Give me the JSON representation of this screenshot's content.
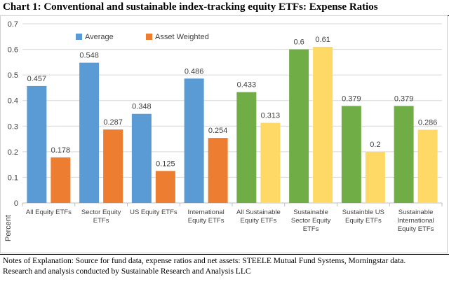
{
  "title": "Chart 1:  Conventional and sustainable index-tracking equity ETFs:  Expense Ratios",
  "notes": {
    "line1": "Notes of Explanation:  Source for fund data, expense ratios and net assets: STEELE Mutual Fund Systems, Morningstar data.",
    "line2": "Research and analysis conducted by Sustainable Research and Analysis LLC"
  },
  "colors": {
    "average": "#5b9bd5",
    "asset_weighted": "#ed7d31",
    "sustainable_average": "#70ad47",
    "sustainable_asset_weighted": "#ffd966",
    "grid": "#d9d9d9",
    "axis": "#bfbfbf"
  },
  "chart_data": {
    "type": "bar",
    "title": "",
    "xlabel": "",
    "ylabel": "Percent",
    "ylim": [
      0,
      0.7
    ],
    "yticks": [
      "0",
      "0.1",
      "0.2",
      "0.3",
      "0.4",
      "0.5",
      "0.6",
      "0.7"
    ],
    "grid": true,
    "legend_position": "top-left",
    "categories": [
      [
        "All Equity ETFs"
      ],
      [
        "Sector Equity",
        "ETFs"
      ],
      [
        "US Equity ETFs"
      ],
      [
        "International",
        "Equity ETFs"
      ],
      [
        "All Sustainable",
        "Equity ETFs"
      ],
      [
        "Sustainable",
        "Sector Equity",
        "ETFs"
      ],
      [
        "Sustainble US",
        "Equity ETFs"
      ],
      [
        "Sustainable",
        "International",
        "Equity ETFs"
      ]
    ],
    "series": [
      {
        "name": "Average",
        "values": [
          0.457,
          0.548,
          0.348,
          0.486,
          0.433,
          0.6,
          0.379,
          0.379
        ],
        "labels": [
          "0.457",
          "0.548",
          "0.348",
          "0.486",
          "0.433",
          "0.6",
          "0.379",
          "0.379"
        ]
      },
      {
        "name": "Asset Weighted",
        "values": [
          0.178,
          0.287,
          0.125,
          0.254,
          0.313,
          0.61,
          0.2,
          0.286
        ],
        "labels": [
          "0.178",
          "0.287",
          "0.125",
          "0.254",
          "0.313",
          "0.61",
          "0.2",
          "0.286"
        ]
      }
    ],
    "sustainable_from_index": 4
  }
}
